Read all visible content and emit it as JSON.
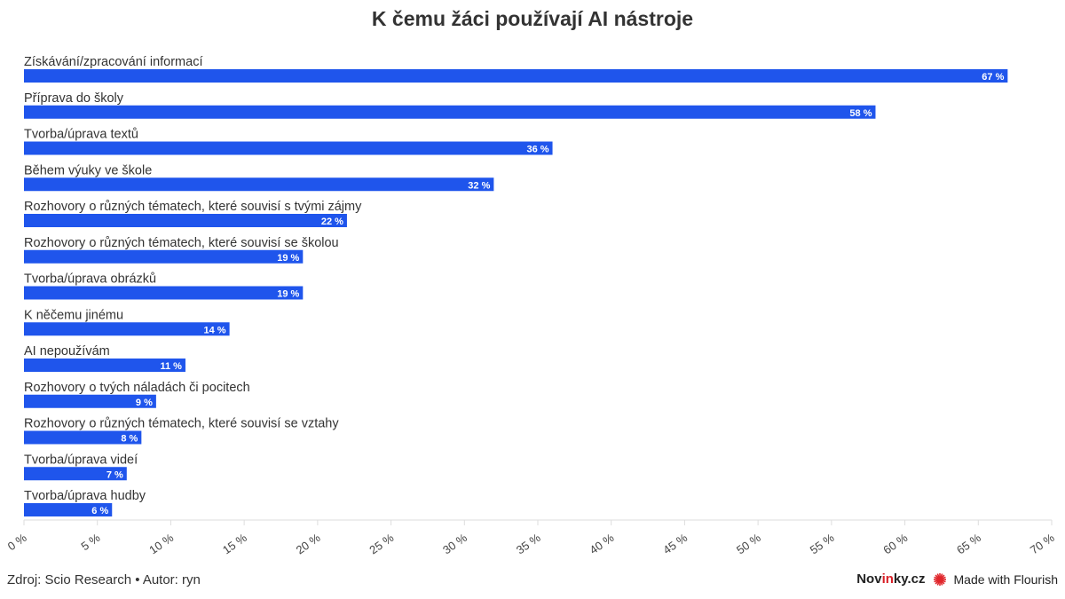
{
  "chart_data": {
    "type": "bar",
    "orientation": "horizontal",
    "title": "K čemu žáci používají AI nástroje",
    "categories": [
      "Získávání/zpracování informací",
      "Příprava do školy",
      "Tvorba/úprava textů",
      "Během výuky ve škole",
      "Rozhovory o různých tématech, které souvisí s tvými zájmy",
      "Rozhovory o různých tématech, které souvisí se školou",
      "Tvorba/úprava obrázků",
      "K něčemu jinému",
      "AI nepoužívám",
      "Rozhovory o tvých náladách či pocitech",
      "Rozhovory o různých tématech, které souvisí se vztahy",
      "Tvorba/úprava videí",
      "Tvorba/úprava hudby"
    ],
    "values": [
      67,
      58,
      36,
      32,
      22,
      19,
      19,
      14,
      11,
      9,
      8,
      7,
      6
    ],
    "value_suffix": " %",
    "xlim": [
      0,
      70
    ],
    "xticks": [
      0,
      5,
      10,
      15,
      20,
      25,
      30,
      35,
      40,
      45,
      50,
      55,
      60,
      65,
      70
    ],
    "tick_suffix": " %",
    "grid": false,
    "bar_color": "#1f55ec"
  },
  "footer": {
    "source": "Zdroj: Scio Research • Autor: ryn",
    "brand_pre": "Nov",
    "brand_mid": "in",
    "brand_post": "ky.cz",
    "flourish": "Made with Flourish",
    "flourish_color": "#e0262b"
  }
}
